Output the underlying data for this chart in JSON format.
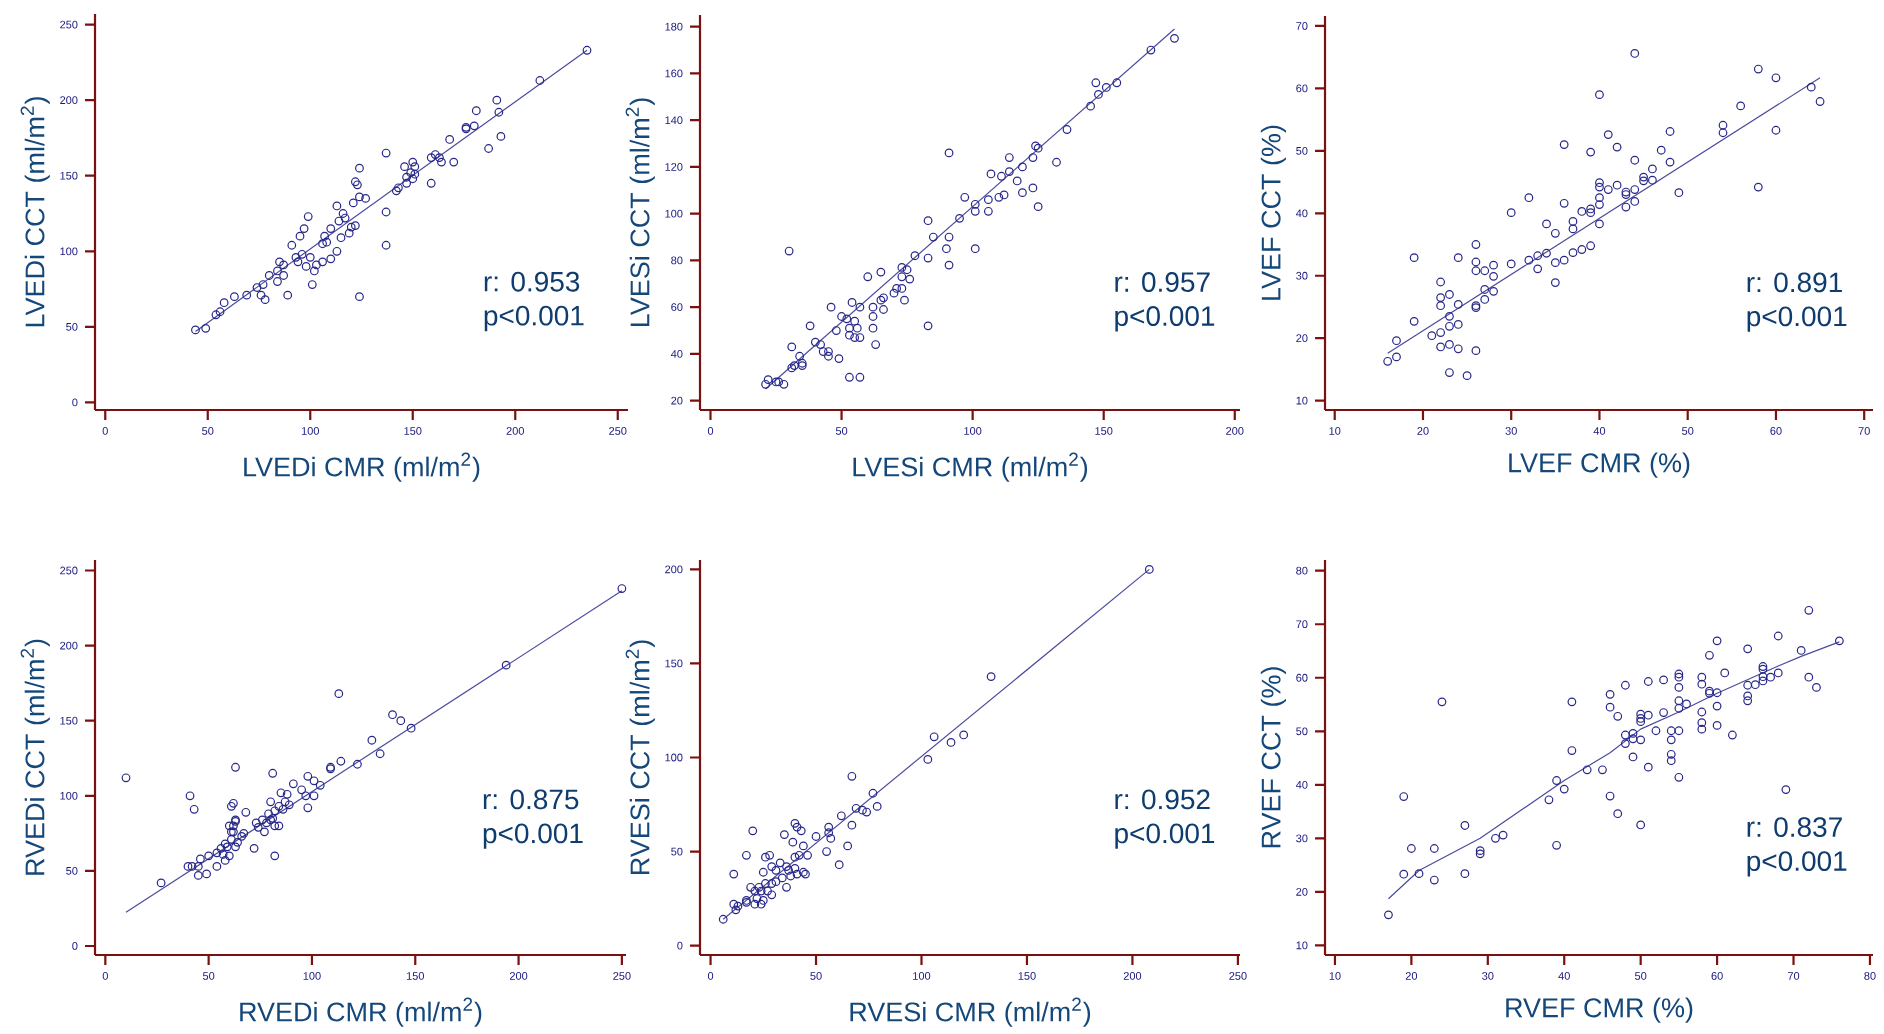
{
  "chart_data": [
    {
      "type": "scatter",
      "xlabel": "LVEDi CMR (ml/m$^{2}$)",
      "ylabel": "LVEDi CCT (ml/m$^{2}$)",
      "xlim": [
        -5,
        255
      ],
      "ylim": [
        -5,
        257
      ],
      "xticks": [
        0,
        50,
        100,
        150,
        200,
        250
      ],
      "yticks": [
        0,
        50,
        100,
        150,
        200,
        250
      ],
      "annotations": [
        "r: 0.953",
        "p<0.001"
      ],
      "series": [
        {
          "marker": "circle",
          "color": "#27278a",
          "x": [
            44,
            49,
            54,
            56,
            58,
            63,
            69,
            74,
            77,
            76,
            78,
            80,
            84,
            84,
            85,
            87,
            87,
            89,
            91,
            93,
            94,
            95,
            96,
            97,
            98,
            99,
            100,
            101,
            102,
            103,
            106,
            106,
            107,
            108,
            110,
            110,
            113,
            113,
            114,
            115,
            116,
            117,
            119,
            120,
            122,
            121,
            122,
            123,
            124,
            124,
            124,
            127,
            137,
            137,
            137,
            142,
            143,
            146,
            147,
            147,
            149,
            150,
            150,
            151,
            151,
            159,
            159,
            161,
            163,
            164,
            168,
            170,
            176,
            176,
            180,
            181,
            187,
            191,
            192,
            193,
            212,
            235
          ],
          "values": [
            48,
            49,
            58,
            60,
            66,
            70,
            71,
            76,
            78,
            71,
            68,
            84,
            87,
            80,
            93,
            91,
            84,
            71,
            104,
            96,
            93,
            110,
            98,
            115,
            90,
            123,
            96,
            78,
            87,
            91,
            93,
            105,
            110,
            106,
            115,
            95,
            100,
            130,
            120,
            109,
            125,
            122,
            112,
            116,
            117,
            132,
            146,
            144,
            155,
            136,
            70,
            135,
            165,
            126,
            104,
            140,
            142,
            156,
            145,
            149,
            152,
            159,
            148,
            156,
            151,
            162,
            145,
            164,
            162,
            159,
            174,
            159,
            182,
            181,
            183,
            193,
            168,
            200,
            192,
            176,
            213,
            233
          ]
        },
        {
          "type": "line",
          "color": "#4b4b9e",
          "x": [
            44,
            235
          ],
          "values": [
            47,
            233
          ]
        }
      ]
    },
    {
      "type": "scatter",
      "xlabel": "LVESi CMR (ml/m$^{2}$)",
      "ylabel": "LVESi CCT (ml/m$^{2}$)",
      "xlim": [
        -4,
        202
      ],
      "ylim": [
        16,
        185
      ],
      "xticks": [
        0,
        50,
        100,
        150,
        200
      ],
      "yticks": [
        20,
        40,
        60,
        80,
        100,
        120,
        140,
        160,
        180
      ],
      "annotations": [
        "r: 0.957",
        "p<0.001"
      ],
      "series": [
        {
          "marker": "circle",
          "color": "#27278a",
          "x": [
            21,
            22,
            25,
            26,
            28,
            30,
            31,
            31,
            32,
            34,
            35,
            35,
            38,
            40,
            42,
            43,
            45,
            45,
            46,
            48,
            49,
            50,
            52,
            53,
            53,
            53,
            54,
            55,
            55,
            56,
            57,
            57,
            57,
            60,
            62,
            62,
            62,
            63,
            65,
            65,
            66,
            66,
            70,
            71,
            73,
            73,
            73,
            74,
            75,
            76,
            78,
            83,
            83,
            83,
            85,
            90,
            91,
            91,
            91,
            95,
            97,
            101,
            101,
            101,
            106,
            106,
            107,
            110,
            111,
            112,
            114,
            114,
            117,
            119,
            119,
            123,
            123,
            124,
            125,
            125,
            132,
            136,
            145,
            147,
            148,
            151,
            155,
            168,
            177
          ],
          "values": [
            27,
            29,
            28,
            28,
            27,
            84,
            34,
            43,
            35,
            39,
            36,
            35,
            52,
            45,
            44,
            41,
            39,
            41,
            60,
            50,
            38,
            56,
            55,
            51,
            48,
            30,
            62,
            54,
            47,
            51,
            47,
            30,
            60,
            73,
            60,
            56,
            51,
            44,
            75,
            63,
            64,
            59,
            66,
            68,
            68,
            77,
            73,
            63,
            76,
            72,
            82,
            81,
            97,
            52,
            90,
            85,
            126,
            90,
            78,
            98,
            107,
            104,
            101,
            85,
            106,
            101,
            117,
            107,
            116,
            108,
            124,
            118,
            114,
            120,
            109,
            124,
            111,
            129,
            128,
            103,
            122,
            136,
            146,
            156,
            151,
            154,
            156,
            170,
            175
          ]
        },
        {
          "type": "line",
          "color": "#4b4b9e",
          "x": [
            21,
            177
          ],
          "values": [
            25,
            179
          ]
        }
      ]
    },
    {
      "type": "scatter",
      "xlabel": "LVEF CMR (%)",
      "ylabel": "LVEF CCT (%)",
      "xlim": [
        8.9,
        71
      ],
      "ylim": [
        8.5,
        71.6
      ],
      "xticks": [
        10,
        20,
        30,
        40,
        50,
        60,
        70
      ],
      "yticks": [
        10,
        20,
        30,
        40,
        50,
        60,
        70
      ],
      "annotations": [
        "r: 0.891",
        "p<0.001"
      ],
      "series": [
        {
          "marker": "circle",
          "color": "#27278a",
          "x": [
            16,
            17,
            17,
            19,
            19,
            21,
            22,
            22,
            22,
            22,
            22,
            23,
            23,
            23,
            23,
            23,
            24,
            24,
            24,
            24,
            25,
            26,
            26,
            26,
            26,
            26,
            26,
            27,
            27,
            27,
            28,
            28,
            28,
            30,
            30,
            32,
            32,
            33,
            33,
            34,
            34,
            35,
            35,
            35,
            36,
            36,
            36,
            37,
            37,
            37,
            38,
            38,
            39,
            39,
            39,
            39,
            40,
            40,
            40,
            40,
            40,
            40,
            41,
            41,
            42,
            42,
            43,
            43,
            43,
            44,
            44,
            44,
            44,
            45,
            45,
            46,
            46,
            47,
            48,
            48,
            49,
            54,
            54,
            56,
            58,
            58,
            60,
            60,
            64,
            65
          ],
          "values": [
            16.3,
            19.6,
            17,
            32.9,
            22.7,
            20.4,
            29,
            26.5,
            25.2,
            20.9,
            18.6,
            27,
            23.5,
            21.9,
            19,
            14.5,
            32.9,
            25.4,
            22.2,
            18.3,
            14,
            35,
            32.2,
            30.8,
            25.2,
            24.9,
            18,
            30.8,
            27.8,
            26.2,
            31.7,
            29.9,
            27.5,
            40.1,
            31.9,
            42.5,
            32.5,
            33.2,
            31.1,
            38.3,
            33.6,
            36.8,
            32.1,
            28.9,
            51,
            41.6,
            32.5,
            38.7,
            37.5,
            33.7,
            40.3,
            34.2,
            49.8,
            40.7,
            40.1,
            34.8,
            59,
            44.9,
            44.2,
            42.5,
            41.4,
            38.3,
            52.6,
            43.8,
            50.6,
            44.5,
            43.4,
            43,
            41,
            65.6,
            48.5,
            43.8,
            41.9,
            45.8,
            45.2,
            47.1,
            45.3,
            50.1,
            53.1,
            48.2,
            43.3,
            54.1,
            52.9,
            57.2,
            63.1,
            44.2,
            61.7,
            53.3,
            60.2,
            57.9
          ]
        },
        {
          "type": "line",
          "color": "#4b4b9e",
          "x": [
            16,
            65
          ],
          "values": [
            17.6,
            61.7
          ]
        }
      ]
    },
    {
      "type": "scatter",
      "xlabel": "RVEDi CMR (ml/m$^{2}$)",
      "ylabel": "RVEDi CCT (ml/m$^{2}$)",
      "xlim": [
        -5,
        252
      ],
      "ylim": [
        -6,
        257
      ],
      "xticks": [
        0,
        50,
        100,
        150,
        200,
        250
      ],
      "yticks": [
        0,
        50,
        100,
        150,
        200,
        250
      ],
      "annotations": [
        "r: 0.875",
        "p<0.001"
      ],
      "series": [
        {
          "marker": "circle",
          "color": "#27278a",
          "x": [
            10,
            27,
            40,
            42,
            41,
            43,
            45,
            45,
            46,
            49,
            50,
            54,
            54,
            56,
            57,
            58,
            58,
            59,
            60,
            60,
            61,
            61,
            61,
            62,
            62,
            62,
            63,
            63,
            63,
            63,
            64,
            66,
            67,
            68,
            72,
            73,
            74,
            76,
            77,
            78,
            79,
            80,
            80,
            81,
            81,
            82,
            82,
            82,
            84,
            84,
            85,
            86,
            87,
            88,
            89,
            91,
            95,
            97,
            98,
            98,
            101,
            101,
            104,
            109,
            109,
            113,
            114,
            122,
            129,
            133,
            139,
            143,
            148,
            194,
            250
          ],
          "values": [
            112,
            42,
            53,
            53,
            100,
            91,
            53,
            47,
            58,
            48,
            60,
            53,
            62,
            65,
            61,
            57,
            68,
            66,
            60,
            80,
            76,
            71,
            93,
            95,
            80,
            76,
            119,
            66,
            83,
            84,
            69,
            73,
            75,
            89,
            65,
            82,
            79,
            84,
            76,
            82,
            88,
            96,
            84,
            115,
            85,
            80,
            90,
            60,
            80,
            93,
            102,
            91,
            96,
            101,
            94,
            108,
            104,
            100,
            92,
            113,
            110,
            100,
            107,
            119,
            118,
            168,
            123,
            121,
            137,
            128,
            154,
            150,
            145,
            187,
            238
          ]
        },
        {
          "type": "line",
          "color": "#4b4b9e",
          "x": [
            10,
            250
          ],
          "values": [
            22.5,
            236.5
          ]
        }
      ]
    },
    {
      "type": "scatter",
      "xlabel": "RVESi CMR (ml/m$^{2}$)",
      "ylabel": "RVESi CCT (ml/m$^{2}$)",
      "xlim": [
        -5,
        251
      ],
      "ylim": [
        -5,
        205
      ],
      "xticks": [
        0,
        50,
        100,
        150,
        200,
        250
      ],
      "yticks": [
        0,
        50,
        100,
        150,
        200
      ],
      "annotations": [
        "r: 0.952",
        "p<0.001"
      ],
      "series": [
        {
          "marker": "circle",
          "color": "#27278a",
          "x": [
            6,
            11,
            12,
            11,
            13,
            17,
            17,
            17,
            19,
            20,
            21,
            21,
            22,
            23,
            24,
            24,
            25,
            25,
            26,
            26,
            27,
            28,
            29,
            29,
            29,
            31,
            31,
            33,
            34,
            35,
            36,
            36,
            37,
            38,
            39,
            40,
            40,
            40,
            41,
            41,
            42,
            43,
            44,
            44,
            45,
            46,
            50,
            55,
            56,
            56,
            57,
            61,
            62,
            65,
            67,
            67,
            69,
            72,
            74,
            77,
            79,
            103,
            106,
            114,
            120,
            133,
            208
          ],
          "values": [
            14,
            22,
            19,
            38,
            21,
            24,
            23,
            48,
            31,
            61,
            22,
            29,
            25,
            31,
            22,
            29,
            24,
            39,
            33,
            47,
            29,
            48,
            27,
            33,
            42,
            34,
            40,
            44,
            36,
            59,
            31,
            42,
            40,
            37,
            55,
            47,
            65,
            41,
            63,
            38,
            48,
            61,
            53,
            39,
            38,
            48,
            58,
            50,
            63,
            60,
            57,
            43,
            69,
            53,
            64,
            90,
            73,
            72,
            71,
            81,
            74,
            99,
            111,
            108,
            112,
            143,
            200
          ]
        },
        {
          "type": "line",
          "color": "#4b4b9e",
          "x": [
            6,
            208
          ],
          "values": [
            14,
            200
          ]
        }
      ]
    },
    {
      "type": "scatter",
      "xlabel": "RVEF CMR (%)",
      "ylabel": "RVEF CCT (%)",
      "xlim": [
        8.7,
        80.4
      ],
      "ylim": [
        8.2,
        82
      ],
      "xticks": [
        10,
        20,
        30,
        40,
        50,
        60,
        70,
        80
      ],
      "yticks": [
        10,
        20,
        30,
        40,
        50,
        60,
        70,
        80
      ],
      "annotations": [
        "r: 0.837",
        "p<0.001"
      ],
      "series": [
        {
          "marker": "circle",
          "color": "#27278a",
          "x": [
            17,
            19,
            19,
            20,
            21,
            23,
            23,
            24,
            27,
            27,
            29,
            29,
            31,
            32,
            38,
            39,
            39,
            40,
            41,
            41,
            43,
            45,
            46,
            46,
            46,
            47,
            47,
            48,
            48,
            48,
            49,
            49,
            49,
            50,
            50,
            50,
            50,
            50,
            51,
            51,
            51,
            52,
            53,
            53,
            54,
            54,
            54,
            54,
            55,
            55,
            55,
            55,
            55,
            55,
            55,
            56,
            58,
            58,
            58,
            58,
            58,
            59,
            59,
            59,
            60,
            60,
            60,
            60,
            61,
            62,
            64,
            64,
            64,
            64,
            65,
            66,
            66,
            66,
            66,
            67,
            68,
            68,
            69,
            71,
            72,
            72,
            73,
            76
          ],
          "values": [
            15.7,
            37.8,
            23.3,
            28.1,
            23.4,
            28.1,
            22.2,
            55.5,
            32.4,
            23.4,
            27.7,
            27.1,
            30,
            30.6,
            37.2,
            40.8,
            28.7,
            39.2,
            55.5,
            46.4,
            42.8,
            42.8,
            56.9,
            54.5,
            37.9,
            52.8,
            34.6,
            58.6,
            49.3,
            47.7,
            49.6,
            48.6,
            45.2,
            53.2,
            52.4,
            51.8,
            48.4,
            32.5,
            59.3,
            53,
            43.3,
            50.1,
            59.6,
            53.5,
            50.1,
            48.4,
            45.7,
            44.5,
            60.7,
            60.1,
            58.2,
            55.7,
            54.3,
            50.1,
            41.4,
            55.1,
            60.1,
            58.8,
            53.6,
            51.6,
            50.4,
            64.2,
            57.5,
            57.1,
            66.9,
            57.2,
            54.7,
            51.1,
            60.9,
            49.3,
            65.4,
            58.6,
            56.6,
            55.7,
            58.7,
            62.1,
            61.6,
            60.2,
            59.4,
            60.1,
            67.8,
            60.9,
            39.1,
            65.1,
            72.6,
            60.1,
            58.2,
            66.9
          ]
        },
        {
          "type": "line",
          "color": "#4b4b9e",
          "x": [
            17,
            21,
            29,
            40,
            46,
            50,
            55,
            60,
            68,
            71,
            76
          ],
          "values": [
            18.7,
            24,
            30,
            40.8,
            46,
            50.4,
            53.6,
            57.1,
            62.2,
            64,
            66.7
          ]
        }
      ]
    }
  ]
}
